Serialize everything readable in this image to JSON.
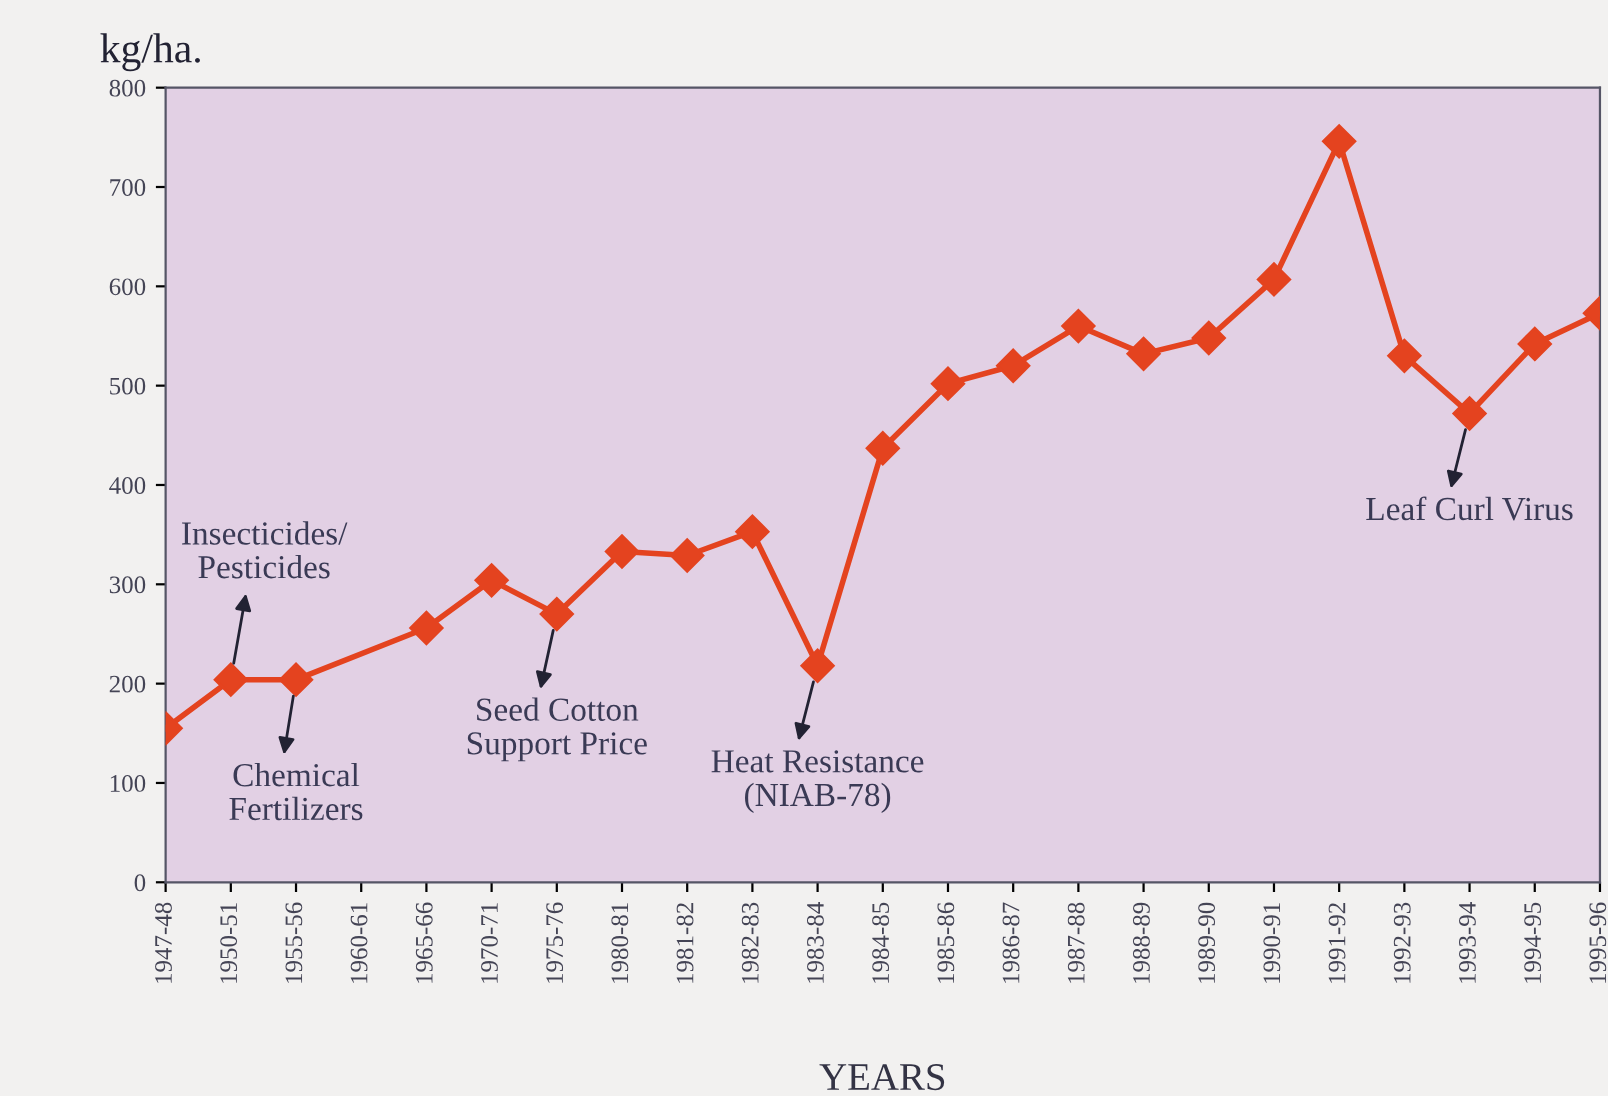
{
  "chart_data": {
    "type": "line",
    "ylabel": "kg/ha.",
    "xlabel": "YEARS",
    "categories": [
      "1947-48",
      "1950-51",
      "1955-56",
      "1960-61",
      "1965-66",
      "1970-71",
      "1975-76",
      "1980-81",
      "1981-82",
      "1982-83",
      "1983-84",
      "1984-85",
      "1985-86",
      "1986-87",
      "1987-88",
      "1988-89",
      "1989-90",
      "1990-91",
      "1991-92",
      "1992-93",
      "1993-94",
      "1994-95",
      "1995-96"
    ],
    "series": [
      {
        "color": "#e4431f",
        "values": [
          155,
          204,
          204,
          null,
          256,
          304,
          270,
          333,
          329,
          353,
          218,
          437,
          502,
          520,
          560,
          532,
          548,
          607,
          746,
          530,
          472,
          542,
          573
        ]
      }
    ],
    "ylim": [
      0,
      800
    ],
    "yticks": [
      0,
      100,
      200,
      300,
      400,
      500,
      600,
      700,
      800
    ],
    "marker": "diamond",
    "line_style": "solid",
    "grid": false,
    "legend": false,
    "annotations": [
      {
        "text": "Insecticides/\nPesticides",
        "x": "1950-51",
        "y": 204
      },
      {
        "text": "Chemical\nFertilizers",
        "x": "1955-56",
        "y": 204
      },
      {
        "text": "Seed Cotton\nSupport Price",
        "x": "1975-76",
        "y": 270
      },
      {
        "text": "Heat Resistance\n(NIAB-78)",
        "x": "1983-84",
        "y": 218
      },
      {
        "text": "Leaf Curl Virus",
        "x": "1993-94",
        "y": 472
      }
    ]
  }
}
